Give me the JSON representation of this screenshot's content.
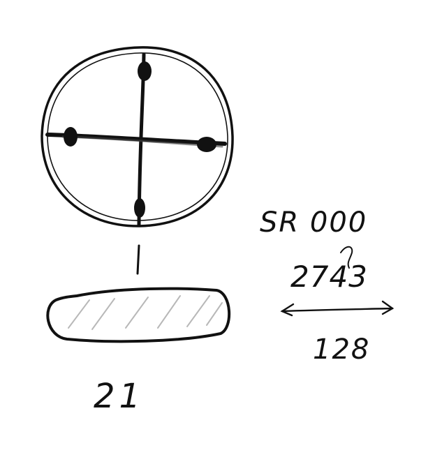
{
  "labels": {
    "serial": "SR 000",
    "number": "2743",
    "width": "128",
    "thickness": "21"
  },
  "colors": {
    "ink": "#111111",
    "hatch": "#b8b8b8",
    "paper": "#ffffff"
  }
}
